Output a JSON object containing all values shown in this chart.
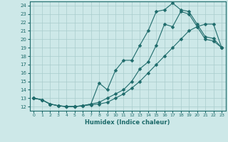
{
  "xlabel": "Humidex (Indice chaleur)",
  "xlim": [
    -0.5,
    23.5
  ],
  "ylim": [
    11.5,
    24.5
  ],
  "yticks": [
    12,
    13,
    14,
    15,
    16,
    17,
    18,
    19,
    20,
    21,
    22,
    23,
    24
  ],
  "xticks": [
    0,
    1,
    2,
    3,
    4,
    5,
    6,
    7,
    8,
    9,
    10,
    11,
    12,
    13,
    14,
    15,
    16,
    17,
    18,
    19,
    20,
    21,
    22,
    23
  ],
  "bg_color": "#cde8e8",
  "line_color": "#1e6b6b",
  "line1_x": [
    0,
    1,
    2,
    3,
    4,
    5,
    6,
    7,
    8,
    9,
    10,
    11,
    12,
    13,
    14,
    15,
    16,
    17,
    18,
    19,
    20,
    21,
    22,
    23
  ],
  "line1_y": [
    13.0,
    12.8,
    12.3,
    12.1,
    12.0,
    12.0,
    12.1,
    12.2,
    12.3,
    12.5,
    13.0,
    13.5,
    14.2,
    15.0,
    16.0,
    17.0,
    18.0,
    19.0,
    20.0,
    21.0,
    21.5,
    21.8,
    21.8,
    19.0
  ],
  "line2_x": [
    0,
    1,
    2,
    3,
    4,
    5,
    6,
    7,
    8,
    9,
    10,
    11,
    12,
    13,
    14,
    15,
    16,
    17,
    18,
    19,
    20,
    21,
    22,
    23
  ],
  "line2_y": [
    13.0,
    12.8,
    12.3,
    12.1,
    12.0,
    12.0,
    12.1,
    12.3,
    14.8,
    14.0,
    16.3,
    17.5,
    17.5,
    19.3,
    21.0,
    23.3,
    23.5,
    24.3,
    23.5,
    23.3,
    21.8,
    20.3,
    20.1,
    19.0
  ],
  "line3_x": [
    0,
    1,
    2,
    3,
    4,
    5,
    6,
    7,
    8,
    9,
    10,
    11,
    12,
    13,
    14,
    15,
    16,
    17,
    18,
    19,
    20,
    21,
    22,
    23
  ],
  "line3_y": [
    13.0,
    12.8,
    12.3,
    12.1,
    12.0,
    12.0,
    12.1,
    12.3,
    12.5,
    13.0,
    13.5,
    14.0,
    15.0,
    16.5,
    17.3,
    19.3,
    21.8,
    21.5,
    23.3,
    23.0,
    21.5,
    20.0,
    19.8,
    19.0
  ]
}
